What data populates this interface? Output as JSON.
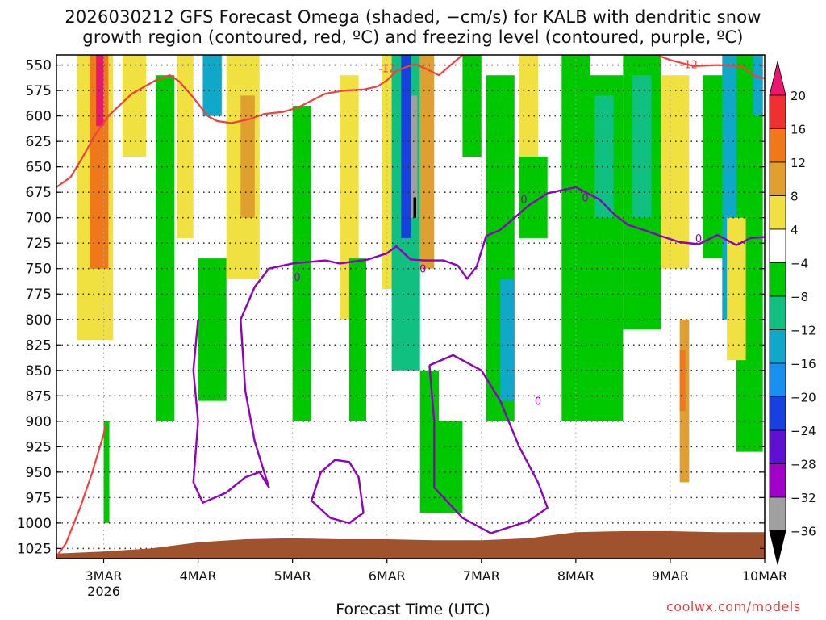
{
  "title_line1": "2026030212 GFS Forecast Omega (shaded, −cm/s) for KALB with dendritic snow",
  "title_line2": "growth region (contoured, red, ºC) and freezing level (contoured, purple, ºC)",
  "credit": "coolwx.com/models",
  "chart_data": {
    "type": "heatmap",
    "title": "2026030212 GFS Forecast Omega (shaded, −cm/s) for KALB with dendritic snow growth region (contoured, red, ºC) and freezing level (contoured, purple, ºC)",
    "xlabel": "Forecast Time (UTC)",
    "ylabel": "",
    "x_ticks": [
      "3MAR",
      "4MAR",
      "5MAR",
      "6MAR",
      "7MAR",
      "8MAR",
      "9MAR",
      "10MAR"
    ],
    "x_year_label": "2026",
    "x_range_days": [
      2.5,
      10.0
    ],
    "y_ticks": [
      550,
      575,
      600,
      625,
      650,
      675,
      700,
      725,
      750,
      775,
      800,
      825,
      850,
      875,
      900,
      925,
      950,
      975,
      1000,
      1025
    ],
    "y_range_hpa": [
      1035,
      540
    ],
    "colorbar": {
      "labels": [
        "20",
        "16",
        "12",
        "8",
        "4",
        "−4",
        "−8",
        "−12",
        "−16",
        "−20",
        "−24",
        "−28",
        "−32",
        "−36"
      ],
      "bins": [
        {
          "lo": 20,
          "hi": 24,
          "color": "#e8186e"
        },
        {
          "lo": 16,
          "hi": 20,
          "color": "#f03030"
        },
        {
          "lo": 12,
          "hi": 16,
          "color": "#f07818"
        },
        {
          "lo": 8,
          "hi": 12,
          "color": "#e0a030"
        },
        {
          "lo": 4,
          "hi": 8,
          "color": "#f0e040"
        },
        {
          "lo": -4,
          "hi": 4,
          "color": "#ffffff"
        },
        {
          "lo": -8,
          "hi": -4,
          "color": "#00c800"
        },
        {
          "lo": -12,
          "hi": -8,
          "color": "#10c080"
        },
        {
          "lo": -16,
          "hi": -12,
          "color": "#10a8c8"
        },
        {
          "lo": -20,
          "hi": -16,
          "color": "#1890f0"
        },
        {
          "lo": -24,
          "hi": -20,
          "color": "#1840e0"
        },
        {
          "lo": -28,
          "hi": -24,
          "color": "#6010d0"
        },
        {
          "lo": -32,
          "hi": -28,
          "color": "#a000c8"
        },
        {
          "lo": -36,
          "hi": -32,
          "color": "#a0a0a0"
        },
        {
          "lo": -40,
          "hi": -36,
          "color": "#000000"
        }
      ]
    },
    "contour_labels": {
      "dgz": "-12",
      "freezing": "0"
    },
    "dgz_contour": [
      [
        2.5,
        670
      ],
      [
        2.65,
        660
      ],
      [
        2.78,
        640
      ],
      [
        2.9,
        620
      ],
      [
        3.05,
        600
      ],
      [
        3.3,
        578
      ],
      [
        3.55,
        565
      ],
      [
        3.7,
        560
      ],
      [
        3.8,
        566
      ],
      [
        3.95,
        582
      ],
      [
        4.1,
        600
      ],
      [
        4.2,
        605
      ],
      [
        4.35,
        607
      ],
      [
        4.55,
        603
      ],
      [
        4.7,
        598
      ],
      [
        4.9,
        596
      ],
      [
        5.05,
        592
      ],
      [
        5.2,
        585
      ],
      [
        5.35,
        578
      ],
      [
        5.55,
        575
      ],
      [
        5.75,
        574
      ],
      [
        5.9,
        571
      ],
      [
        6.0,
        565
      ],
      [
        6.1,
        556
      ],
      [
        6.2,
        552
      ],
      [
        6.3,
        549
      ],
      [
        6.42,
        554
      ],
      [
        6.55,
        560
      ],
      [
        6.65,
        552
      ],
      [
        6.8,
        540
      ],
      [
        7.0,
        538
      ],
      [
        7.2,
        538
      ],
      [
        8.0,
        538
      ],
      [
        8.8,
        538
      ],
      [
        9.0,
        545
      ],
      [
        9.25,
        551
      ],
      [
        9.5,
        550
      ],
      [
        9.75,
        551
      ],
      [
        9.9,
        561
      ],
      [
        10.0,
        563
      ]
    ],
    "dgz_lower_contour": [
      [
        2.5,
        1033
      ],
      [
        2.6,
        1020
      ],
      [
        2.75,
        985
      ],
      [
        2.88,
        950
      ],
      [
        2.95,
        928
      ],
      [
        3.0,
        913
      ],
      [
        3.02,
        903
      ]
    ],
    "freezing_contour": [
      [
        5.35,
        742
      ],
      [
        5.5,
        745
      ],
      [
        5.8,
        741
      ],
      [
        6.0,
        735
      ],
      [
        6.1,
        728
      ],
      [
        6.25,
        741
      ],
      [
        6.4,
        742
      ],
      [
        6.6,
        742
      ],
      [
        6.75,
        747
      ],
      [
        6.85,
        760
      ],
      [
        6.95,
        748
      ],
      [
        7.05,
        718
      ],
      [
        7.2,
        712
      ],
      [
        7.35,
        700
      ],
      [
        7.5,
        688
      ],
      [
        7.7,
        676
      ],
      [
        8.0,
        670
      ],
      [
        8.25,
        682
      ],
      [
        8.4,
        696
      ],
      [
        8.55,
        707
      ],
      [
        8.75,
        713
      ],
      [
        8.9,
        718
      ],
      [
        9.1,
        724
      ],
      [
        9.3,
        726
      ],
      [
        9.5,
        717
      ],
      [
        9.7,
        727
      ],
      [
        9.85,
        720
      ],
      [
        10.0,
        719
      ]
    ],
    "freezing_contour_2": [
      [
        4.0,
        800
      ],
      [
        3.95,
        850
      ],
      [
        4.0,
        900
      ],
      [
        3.95,
        960
      ],
      [
        4.05,
        980
      ],
      [
        4.3,
        970
      ],
      [
        4.5,
        955
      ],
      [
        4.65,
        950
      ],
      [
        4.75,
        965
      ],
      [
        4.6,
        920
      ],
      [
        4.5,
        870
      ],
      [
        4.45,
        800
      ],
      [
        4.6,
        768
      ],
      [
        4.75,
        750
      ],
      [
        5.0,
        745
      ],
      [
        5.35,
        742
      ]
    ],
    "freezing_contour_3": [
      [
        6.45,
        845
      ],
      [
        6.7,
        835
      ],
      [
        7.0,
        850
      ],
      [
        7.2,
        880
      ],
      [
        7.4,
        925
      ],
      [
        7.6,
        960
      ],
      [
        7.7,
        985
      ],
      [
        7.5,
        998
      ],
      [
        7.1,
        1010
      ],
      [
        6.8,
        995
      ],
      [
        6.5,
        965
      ],
      [
        6.5,
        900
      ],
      [
        6.45,
        845
      ]
    ],
    "freezing_contour_4": [
      [
        5.2,
        978
      ],
      [
        5.3,
        950
      ],
      [
        5.45,
        938
      ],
      [
        5.6,
        940
      ],
      [
        5.7,
        955
      ],
      [
        5.75,
        990
      ],
      [
        5.6,
        1000
      ],
      [
        5.4,
        995
      ],
      [
        5.2,
        978
      ]
    ],
    "terrain_hpa": [
      [
        2.5,
        1030
      ],
      [
        3.0,
        1028
      ],
      [
        3.5,
        1025
      ],
      [
        4.0,
        1019
      ],
      [
        4.5,
        1016
      ],
      [
        5.0,
        1015
      ],
      [
        5.5,
        1016
      ],
      [
        6.0,
        1016
      ],
      [
        6.5,
        1017
      ],
      [
        7.0,
        1017
      ],
      [
        7.5,
        1015
      ],
      [
        8.0,
        1009
      ],
      [
        8.5,
        1008
      ],
      [
        9.0,
        1008
      ],
      [
        9.5,
        1009
      ],
      [
        10.0,
        1009
      ]
    ],
    "shaded_regions": [
      {
        "x0": 2.72,
        "x1": 3.1,
        "p0": 540,
        "p1": 820,
        "value": 6
      },
      {
        "x0": 2.85,
        "x1": 3.05,
        "p0": 540,
        "p1": 750,
        "value": 12
      },
      {
        "x0": 2.92,
        "x1": 3.0,
        "p0": 540,
        "p1": 610,
        "value": 22
      },
      {
        "x0": 3.0,
        "x1": 3.06,
        "p0": 900,
        "p1": 1000,
        "value": -6
      },
      {
        "x0": 3.2,
        "x1": 3.45,
        "p0": 540,
        "p1": 640,
        "value": 6
      },
      {
        "x0": 3.55,
        "x1": 3.75,
        "p0": 560,
        "p1": 900,
        "value": -6
      },
      {
        "x0": 3.78,
        "x1": 3.95,
        "p0": 540,
        "p1": 720,
        "value": 6
      },
      {
        "x0": 4.05,
        "x1": 4.25,
        "p0": 540,
        "p1": 600,
        "value": -14
      },
      {
        "x0": 4.0,
        "x1": 4.3,
        "p0": 740,
        "p1": 880,
        "value": -6
      },
      {
        "x0": 4.3,
        "x1": 4.65,
        "p0": 540,
        "p1": 760,
        "value": 6
      },
      {
        "x0": 4.45,
        "x1": 4.6,
        "p0": 580,
        "p1": 700,
        "value": 10
      },
      {
        "x0": 5.0,
        "x1": 5.2,
        "p0": 590,
        "p1": 900,
        "value": -6
      },
      {
        "x0": 5.5,
        "x1": 5.7,
        "p0": 560,
        "p1": 800,
        "value": 5
      },
      {
        "x0": 5.6,
        "x1": 5.78,
        "p0": 740,
        "p1": 900,
        "value": -6
      },
      {
        "x0": 5.95,
        "x1": 6.15,
        "p0": 540,
        "p1": 770,
        "value": 6
      },
      {
        "x0": 6.05,
        "x1": 6.35,
        "p0": 540,
        "p1": 850,
        "value": -10
      },
      {
        "x0": 6.15,
        "x1": 6.25,
        "p0": 540,
        "p1": 720,
        "value": -22
      },
      {
        "x0": 6.25,
        "x1": 6.32,
        "p0": 580,
        "p1": 700,
        "value": -34
      },
      {
        "x0": 6.28,
        "x1": 6.31,
        "p0": 680,
        "p1": 700,
        "value": -38
      },
      {
        "x0": 6.35,
        "x1": 6.5,
        "p0": 540,
        "p1": 750,
        "value": 9
      },
      {
        "x0": 6.35,
        "x1": 6.55,
        "p0": 850,
        "p1": 990,
        "value": -6
      },
      {
        "x0": 6.5,
        "x1": 6.8,
        "p0": 900,
        "p1": 990,
        "value": -8
      },
      {
        "x0": 6.8,
        "x1": 7.0,
        "p0": 540,
        "p1": 640,
        "value": -6
      },
      {
        "x0": 7.05,
        "x1": 7.35,
        "p0": 560,
        "p1": 900,
        "value": -6
      },
      {
        "x0": 7.2,
        "x1": 7.35,
        "p0": 760,
        "p1": 880,
        "value": -14
      },
      {
        "x0": 7.4,
        "x1": 7.6,
        "p0": 540,
        "p1": 650,
        "value": 5
      },
      {
        "x0": 7.4,
        "x1": 7.7,
        "p0": 640,
        "p1": 720,
        "value": -6
      },
      {
        "x0": 7.85,
        "x1": 8.15,
        "p0": 540,
        "p1": 900,
        "value": -6
      },
      {
        "x0": 8.1,
        "x1": 8.5,
        "p0": 560,
        "p1": 900,
        "value": -6
      },
      {
        "x0": 8.2,
        "x1": 8.4,
        "p0": 580,
        "p1": 700,
        "value": -10
      },
      {
        "x0": 8.5,
        "x1": 8.9,
        "p0": 540,
        "p1": 810,
        "value": -6
      },
      {
        "x0": 8.6,
        "x1": 8.8,
        "p0": 560,
        "p1": 700,
        "value": -12
      },
      {
        "x0": 8.9,
        "x1": 9.2,
        "p0": 560,
        "p1": 750,
        "value": 5
      },
      {
        "x0": 9.1,
        "x1": 9.2,
        "p0": 800,
        "p1": 960,
        "value": 9
      },
      {
        "x0": 9.1,
        "x1": 9.16,
        "p0": 830,
        "p1": 890,
        "value": 13
      },
      {
        "x0": 9.35,
        "x1": 9.6,
        "p0": 560,
        "p1": 740,
        "value": -8
      },
      {
        "x0": 9.55,
        "x1": 9.75,
        "p0": 540,
        "p1": 800,
        "value": -14
      },
      {
        "x0": 9.7,
        "x1": 9.98,
        "p0": 540,
        "p1": 930,
        "value": -6
      },
      {
        "x0": 9.88,
        "x1": 9.98,
        "p0": 540,
        "p1": 600,
        "value": -16
      },
      {
        "x0": 9.6,
        "x1": 9.8,
        "p0": 700,
        "p1": 840,
        "value": 5
      }
    ]
  }
}
